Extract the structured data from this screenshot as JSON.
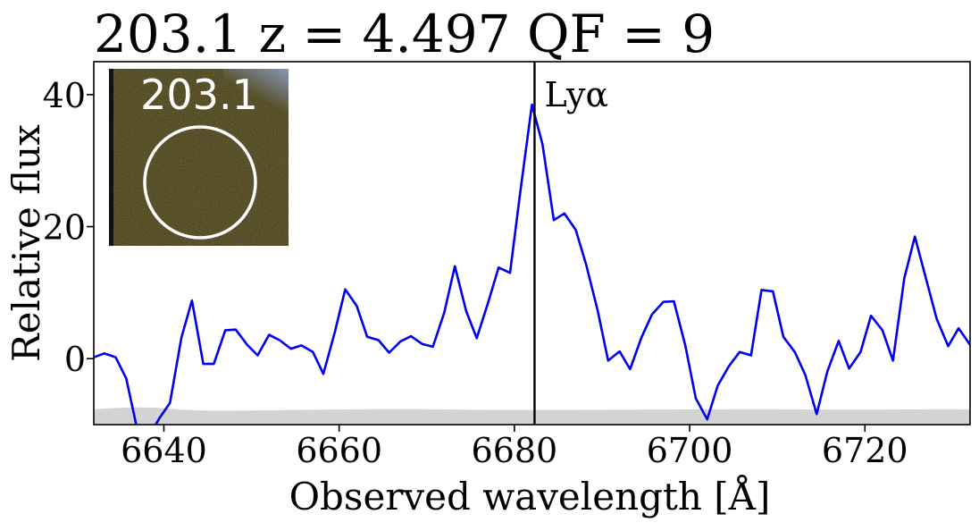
{
  "chart_data": {
    "type": "line",
    "title": "203.1 z = 4.497 QF = 9",
    "xlabel": "Observed wavelength [Å]",
    "ylabel": "Relative flux",
    "xlim": [
      6632,
      6732
    ],
    "ylim": [
      -10,
      45
    ],
    "xticks": [
      6640,
      6660,
      6680,
      6700,
      6720
    ],
    "yticks": [
      0,
      20,
      40
    ],
    "line_color": "#0000ee",
    "marker_line": {
      "x": 6682.3,
      "label": "Lyα",
      "color": "#000000"
    },
    "inset": {
      "label": "203.1"
    },
    "noise_band_color": "#d3d3d3",
    "series": [
      {
        "x": [
          6632,
          6633.2,
          6634.5,
          6635.7,
          6637,
          6638.2,
          6639.5,
          6640.7,
          6642,
          6643.2,
          6644.5,
          6645.7,
          6647,
          6648.2,
          6649.5,
          6650.7,
          6652,
          6653.2,
          6654.5,
          6655.7,
          6657,
          6658.2,
          6659.5,
          6660.7,
          6662,
          6663.2,
          6664.5,
          6665.7,
          6667,
          6668.2,
          6669.5,
          6670.7,
          6672,
          6673.2,
          6674.5,
          6675.7,
          6677,
          6678.2,
          6679.5,
          6680.7,
          6682,
          6683.2,
          6684.5,
          6685.7,
          6687,
          6688.2,
          6689.5,
          6690.7,
          6692,
          6693.2,
          6694.5,
          6695.7,
          6697,
          6698.2,
          6699.5,
          6700.7,
          6702,
          6703.2,
          6704.5,
          6705.7,
          6707,
          6708.2,
          6709.5,
          6710.7,
          6712,
          6713.2,
          6714.5,
          6715.7,
          6717,
          6718.2,
          6719.5,
          6720.7,
          6722,
          6723.2,
          6724.5,
          6725.7,
          6727,
          6728.2,
          6729.5,
          6730.7,
          6732
        ],
        "y": [
          0.2,
          0.8,
          0.2,
          -3,
          -11,
          -12,
          -9,
          -6.7,
          3.2,
          8.8,
          -0.8,
          -0.8,
          4.3,
          4.4,
          2.1,
          0.5,
          3.6,
          2.8,
          1.5,
          2.0,
          1.0,
          -2.3,
          4.0,
          10.5,
          8.0,
          3.3,
          2.8,
          0.9,
          2.6,
          3.4,
          2.2,
          1.8,
          7.0,
          14.0,
          7.2,
          3.1,
          8.5,
          13.8,
          13.0,
          25.5,
          38.5,
          32.5,
          21.0,
          22.0,
          19.5,
          14.2,
          7.3,
          -0.3,
          1.1,
          -1.6,
          3.2,
          6.7,
          8.6,
          8.7,
          2.0,
          -6.0,
          -9.2,
          -4.1,
          -1.1,
          1.0,
          0.5,
          10.4,
          10.2,
          3.3,
          1.0,
          -2.5,
          -8.4,
          -2.0,
          2.7,
          -1.5,
          1.0,
          6.5,
          4.3,
          -0.3,
          12.2,
          18.5,
          12.0,
          6.0,
          1.9,
          4.6,
          2.1
        ]
      }
    ]
  }
}
